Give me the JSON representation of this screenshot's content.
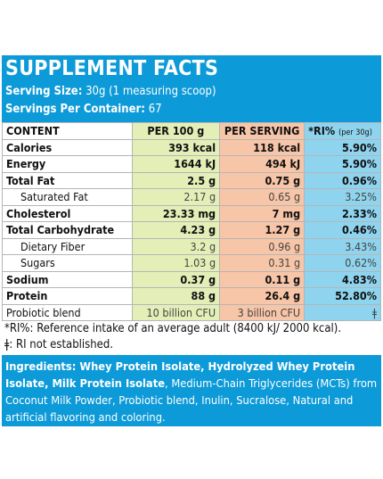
{
  "header": {
    "title": "SUPPLEMENT FACTS",
    "serving_size": {
      "label": "Serving Size:",
      "text": "30g (1 measuring scoop)"
    },
    "servings_per_container": {
      "label": "Servings Per Container:",
      "text": "67"
    }
  },
  "table": {
    "columns": [
      "CONTENT",
      "PER 100 g",
      "PER SERVING",
      {
        "text": "*RI%",
        "note": "(per 30g)"
      }
    ],
    "rows": [
      {
        "cells": [
          "Calories",
          "393 kcal",
          "118 kcal",
          "5.90%"
        ],
        "bold": true,
        "indent": false
      },
      {
        "cells": [
          "Energy",
          "1644 kJ",
          "494 kJ",
          "5.90%"
        ],
        "bold": true,
        "indent": false
      },
      {
        "cells": [
          "Total Fat",
          "2.5 g",
          "0.75 g",
          "0.96%"
        ],
        "bold": true,
        "indent": false
      },
      {
        "cells": [
          "Saturated Fat",
          "2.17 g",
          "0.65 g",
          "3.25%"
        ],
        "bold": false,
        "indent": true
      },
      {
        "cells": [
          "Cholesterol",
          "23.33 mg",
          "7 mg",
          "2.33%"
        ],
        "bold": true,
        "indent": false
      },
      {
        "cells": [
          "Total Carbohydrate",
          "4.23 g",
          "1.27 g",
          "0.46%"
        ],
        "bold": true,
        "indent": false
      },
      {
        "cells": [
          "Dietary Fiber",
          "3.2 g",
          "0.96 g",
          "3.43%"
        ],
        "bold": false,
        "indent": true
      },
      {
        "cells": [
          "Sugars",
          "1.03 g",
          "0.31 g",
          "0.62%"
        ],
        "bold": false,
        "indent": true
      },
      {
        "cells": [
          "Sodium",
          "0.37 g",
          "0.11 g",
          "4.83%"
        ],
        "bold": true,
        "indent": false
      },
      {
        "cells": [
          "Protein",
          "88 g",
          "26.4 g",
          "52.80%"
        ],
        "bold": true,
        "indent": false
      },
      {
        "cells": [
          "Probiotic blend",
          "10 billion CFU",
          "3 billion CFU",
          "ǂ"
        ],
        "bold": false,
        "indent": false
      }
    ]
  },
  "footnotes": [
    "*RI%: Reference intake of an average adult (8400 kJ/ 2000 kcal).",
    "ǂ: RI not established."
  ],
  "ingredients": {
    "bold": "Ingredients: Whey Protein Isolate, Hydrolyzed Whey Protein Isolate, Milk Protein Isolate",
    "text": ", Medium-Chain Triglycerides (MCTs) from Coconut Milk Powder, Probiotic blend, Inulin, Sucralose, Natural and artificial flavoring and coloring."
  }
}
